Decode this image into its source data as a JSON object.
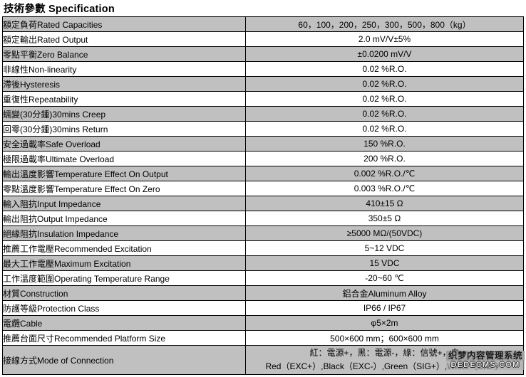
{
  "page": {
    "title": "技術參數 Specification"
  },
  "colors": {
    "row_shade": "#c0c0c0",
    "border": "#000000",
    "text": "#000000",
    "background": "#ffffff"
  },
  "spec_table": {
    "columns": [
      "parameter",
      "value"
    ],
    "rows": [
      {
        "label": "額定負荷Rated Capacities",
        "value": "60，100，200，250，300，500，800（kg）",
        "shaded": true
      },
      {
        "label": "額定輸出Rated Output",
        "value": "2.0 mV/V±5%",
        "shaded": false
      },
      {
        "label": "零點平衡Zero Balance",
        "value": "±0.0200 mV/V",
        "shaded": true
      },
      {
        "label": "非線性Non-linearity",
        "value": "0.02 %R.O.",
        "shaded": false
      },
      {
        "label": "滯後Hysteresis",
        "value": "0.02 %R.O.",
        "shaded": true
      },
      {
        "label": "重復性Repeatability",
        "value": "0.02 %R.O.",
        "shaded": false
      },
      {
        "label": "蠕變(30分鍾)30mins Creep",
        "value": "0.02 %R.O.",
        "shaded": true
      },
      {
        "label": "回零(30分鍾)30mins Return",
        "value": "0.02 %R.O.",
        "shaded": false
      },
      {
        "label": "安全過載率Safe Overload",
        "value": "150 %R.O.",
        "shaded": true
      },
      {
        "label": "極限過載率Ultimate Overload",
        "value": "200 %R.O.",
        "shaded": false
      },
      {
        "label": "輸出溫度影響Temperature Effect On Output",
        "value": "0.002 %R.O./℃",
        "shaded": true
      },
      {
        "label": "零點溫度影響Temperature Effect On Zero",
        "value": "0.003 %R.O./℃",
        "shaded": false
      },
      {
        "label": "輸入阻抗Input Impedance",
        "value": "410±15 Ω",
        "shaded": true
      },
      {
        "label": "輸出阻抗Output Impedance",
        "value": "350±5 Ω",
        "shaded": false
      },
      {
        "label": "絕緣阻抗Insulation Impedance",
        "value": "≥5000 MΩ/(50VDC)",
        "shaded": true
      },
      {
        "label": "推薦工作電壓Recommended Excitation",
        "value": "5~12 VDC",
        "shaded": false
      },
      {
        "label": "最大工作電壓Maximum Excitation",
        "value": "15 VDC",
        "shaded": true
      },
      {
        "label": "工作溫度範圍Operating Temperature Range",
        "value": "-20~60 ℃",
        "shaded": false
      },
      {
        "label": "材質Construction",
        "value": "鋁合金Aluminum Alloy",
        "shaded": true
      },
      {
        "label": "防護等級Protection Class",
        "value": "IP66 / IP67",
        "shaded": false
      },
      {
        "label": "電纜Cable",
        "value": "φ5×2m",
        "shaded": true
      },
      {
        "label": "推薦台面尺寸Recommended Platform Size",
        "value": "500×600 mm；600×600 mm",
        "shaded": false
      },
      {
        "label": "接線方式Mode of Connection",
        "value_lines": [
          "紅：電源+，黑：電源-，綠：信號+，白",
          "Red（EXC+）,Black（EXC-）,Green（SIG+）,White（SIG-）"
        ],
        "shaded": true,
        "tall": true
      }
    ]
  },
  "watermark": {
    "line1": "织梦内容管理系统",
    "line2": "DEDECMS.COM"
  }
}
